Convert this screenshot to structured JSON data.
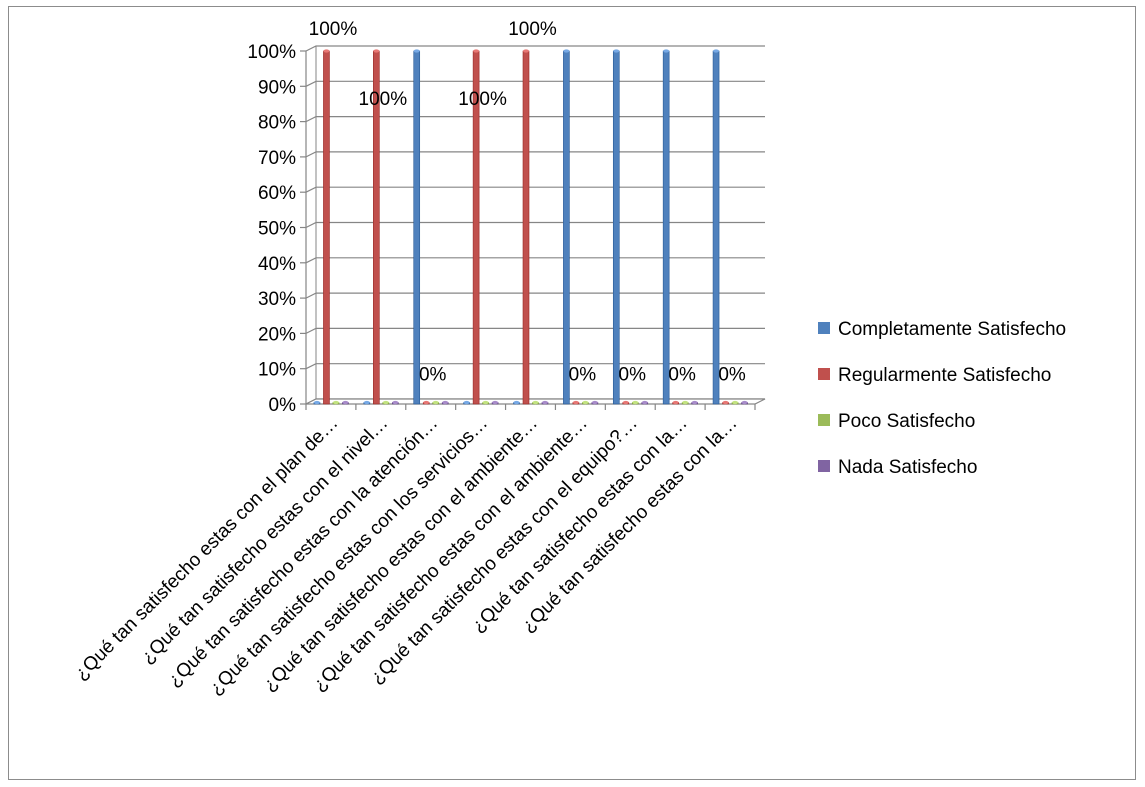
{
  "chart_data": {
    "type": "bar",
    "title": "",
    "xlabel": "",
    "ylabel": "",
    "ylim": [
      0,
      1
    ],
    "grid": true,
    "legend_position": "right",
    "y_ticks": [
      "0%",
      "10%",
      "20%",
      "30%",
      "40%",
      "50%",
      "60%",
      "70%",
      "80%",
      "90%",
      "100%"
    ],
    "categories": [
      "¿Qué tan satisfecho estas con el plan de…",
      "¿Qué tan satisfecho estas con el nivel…",
      "¿Qué tan satisfecho estas con la atención…",
      "¿Qué tan satisfecho estas con los servicios…",
      "¿Qué tan satisfecho estas con el ambiente…",
      "¿Qué tan satisfecho estas con el ambiente…",
      "¿Qué tan satisfecho estas con el equipo?…",
      "¿Qué tan satisfecho estas con la…",
      "¿Qué tan satisfecho estas con la…"
    ],
    "series": [
      {
        "name": "Completamente Satisfecho",
        "color": "#4f81bd",
        "values": [
          0,
          0,
          1,
          0,
          0,
          1,
          1,
          1,
          1
        ]
      },
      {
        "name": "Regularmente Satisfecho",
        "color": "#c0504d",
        "values": [
          1,
          1,
          0,
          1,
          1,
          0,
          0,
          0,
          0
        ]
      },
      {
        "name": "Poco Satisfecho",
        "color": "#9bbb59",
        "values": [
          0,
          0,
          0,
          0,
          0,
          0,
          0,
          0,
          0
        ]
      },
      {
        "name": "Nada Satisfecho",
        "color": "#8064a2",
        "values": [
          0,
          0,
          0,
          0,
          0,
          0,
          0,
          0,
          0
        ]
      }
    ],
    "data_labels": [
      {
        "text": "100%",
        "category": 0,
        "series": 1
      },
      {
        "text": "100%",
        "category": 1,
        "series": 1
      },
      {
        "text": "0%",
        "category": 2,
        "series": 1
      },
      {
        "text": "100%",
        "category": 3,
        "series": 1
      },
      {
        "text": "100%",
        "category": 4,
        "series": 1
      },
      {
        "text": "0%",
        "category": 5,
        "series": 1
      },
      {
        "text": "0%",
        "category": 6,
        "series": 1
      },
      {
        "text": "0%",
        "category": 7,
        "series": 1
      },
      {
        "text": "0%",
        "category": 8,
        "series": 1
      }
    ]
  }
}
